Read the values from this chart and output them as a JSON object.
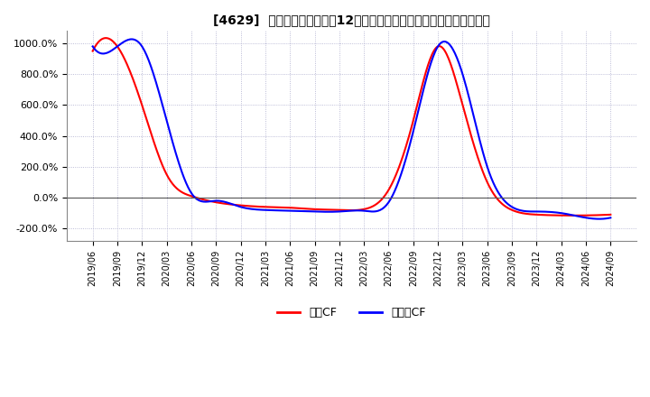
{
  "title": "[4629]  キャッシュフローの12か月移動合計の対前年同期増減率の推移",
  "ylim": [
    -280,
    1080
  ],
  "yticks": [
    -200,
    0,
    200,
    400,
    600,
    800,
    1000
  ],
  "ytick_labels": [
    "-200.0%",
    "0.0%",
    "200.0%",
    "400.0%",
    "600.0%",
    "800.0%",
    "1000.0%"
  ],
  "line_color_eigyo": "#ff0000",
  "line_color_free": "#0000ff",
  "legend_eigyo": "営業CF",
  "legend_free": "フリーCF",
  "background_color": "#ffffff",
  "plot_bg_color": "#ffffff",
  "x_labels": [
    "2019/06",
    "2019/09",
    "2019/12",
    "2020/03",
    "2020/06",
    "2020/09",
    "2020/12",
    "2021/03",
    "2021/06",
    "2021/09",
    "2021/12",
    "2022/03",
    "2022/06",
    "2022/09",
    "2022/12",
    "2023/03",
    "2023/06",
    "2023/09",
    "2023/12",
    "2024/03",
    "2024/06",
    "2024/09"
  ],
  "eigyo_cf": [
    950,
    980,
    600,
    150,
    10,
    -30,
    -50,
    -60,
    -65,
    -75,
    -80,
    -75,
    50,
    500,
    980,
    600,
    100,
    -80,
    -110,
    -115,
    -115,
    -110
  ],
  "free_cf": [
    980,
    980,
    980,
    500,
    30,
    -20,
    -60,
    -80,
    -85,
    -90,
    -90,
    -85,
    -30,
    430,
    980,
    800,
    200,
    -60,
    -90,
    -100,
    -130,
    -130
  ]
}
